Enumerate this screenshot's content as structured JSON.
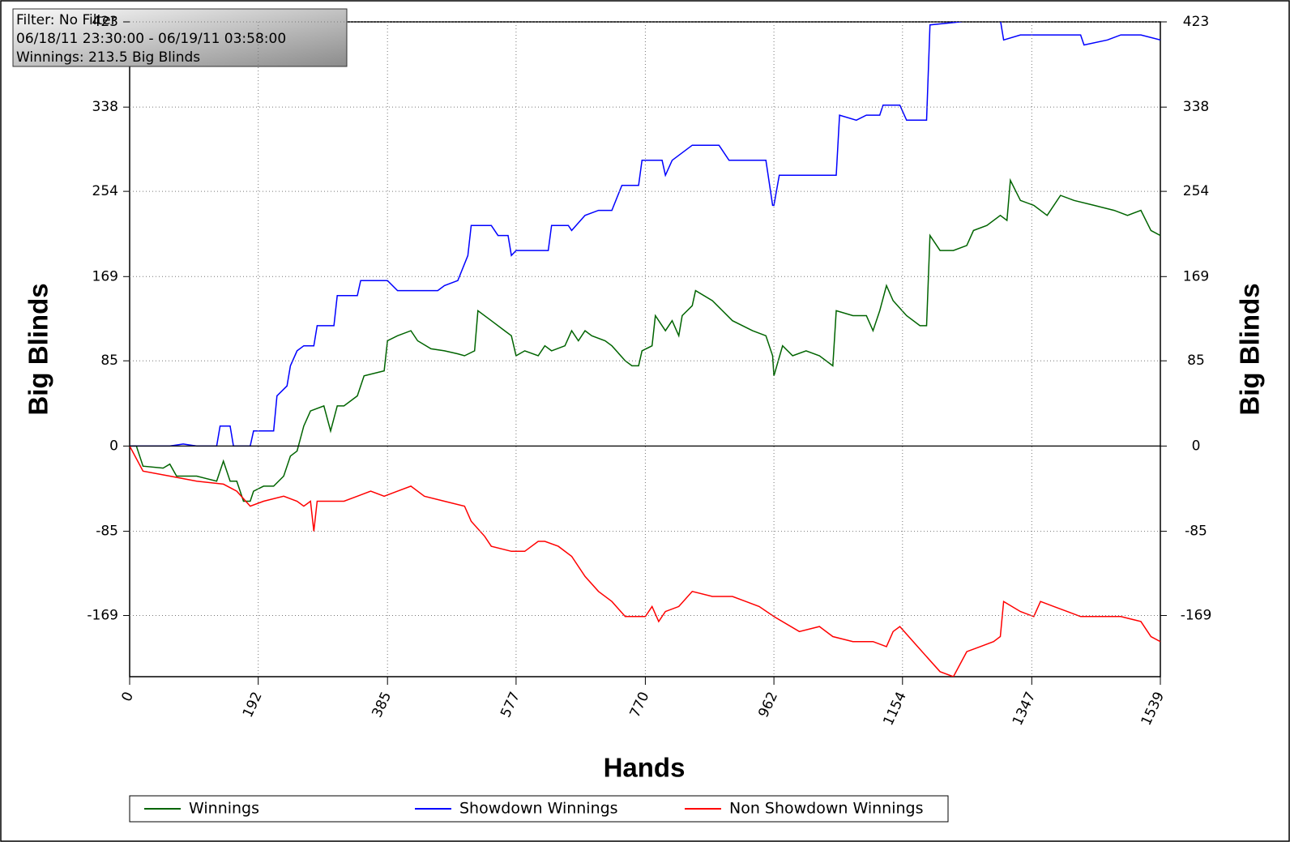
{
  "chart_data": {
    "type": "line",
    "info": [
      "Filter: No Filter",
      "06/18/11 23:30:00 - 06/19/11 03:58:00",
      "Winnings: 213.5 Big Blinds"
    ],
    "xlabel": "Hands",
    "ylabel": "Big Blinds",
    "y2label": "Big Blinds",
    "xlim": [
      0,
      1539
    ],
    "xticks": [
      0,
      192,
      385,
      577,
      770,
      962,
      1154,
      1347,
      1539
    ],
    "ylim": [
      -230,
      423
    ],
    "yticks": [
      -169,
      -85,
      0,
      85,
      169,
      254,
      338,
      423
    ],
    "y2lim": [
      -230,
      423
    ],
    "y2ticks": [
      -169,
      -85,
      0,
      85,
      169,
      254,
      338,
      423
    ],
    "grid": true,
    "legend": "bottom",
    "series": [
      {
        "name": "Winnings",
        "color": "#006400",
        "x": [
          0,
          10,
          20,
          50,
          60,
          70,
          100,
          130,
          140,
          150,
          160,
          170,
          180,
          185,
          200,
          215,
          230,
          240,
          250,
          260,
          270,
          290,
          300,
          310,
          320,
          340,
          350,
          380,
          385,
          400,
          420,
          430,
          450,
          470,
          490,
          500,
          515,
          520,
          540,
          560,
          570,
          577,
          590,
          610,
          620,
          630,
          650,
          660,
          670,
          680,
          690,
          710,
          720,
          740,
          750,
          760,
          765,
          780,
          785,
          800,
          810,
          820,
          825,
          840,
          845,
          870,
          900,
          930,
          950,
          960,
          962,
          975,
          990,
          1010,
          1030,
          1050,
          1055,
          1080,
          1100,
          1110,
          1120,
          1130,
          1140,
          1160,
          1180,
          1190,
          1195,
          1210,
          1230,
          1250,
          1260,
          1280,
          1300,
          1310,
          1315,
          1330,
          1350,
          1370,
          1390,
          1410,
          1440,
          1470,
          1490,
          1510,
          1525,
          1539
        ],
        "values": [
          0,
          0,
          -20,
          -22,
          -18,
          -30,
          -30,
          -35,
          -15,
          -35,
          -35,
          -55,
          -55,
          -45,
          -40,
          -40,
          -30,
          -10,
          -5,
          20,
          35,
          40,
          15,
          40,
          40,
          50,
          70,
          75,
          105,
          110,
          115,
          105,
          97,
          95,
          92,
          90,
          95,
          135,
          125,
          115,
          110,
          90,
          95,
          90,
          100,
          95,
          100,
          115,
          105,
          115,
          110,
          105,
          100,
          85,
          80,
          80,
          95,
          100,
          130,
          115,
          125,
          110,
          130,
          140,
          155,
          145,
          125,
          115,
          110,
          90,
          70,
          100,
          90,
          95,
          90,
          80,
          135,
          130,
          130,
          115,
          135,
          160,
          145,
          130,
          120,
          120,
          210,
          195,
          195,
          200,
          215,
          220,
          230,
          225,
          265,
          245,
          240,
          230,
          250,
          245,
          240,
          235,
          230,
          235,
          215,
          210
        ]
      },
      {
        "name": "Showdown Winnings",
        "color": "#0000ff",
        "x": [
          0,
          60,
          80,
          100,
          130,
          135,
          150,
          155,
          180,
          185,
          215,
          220,
          235,
          240,
          250,
          260,
          275,
          280,
          305,
          310,
          340,
          345,
          385,
          400,
          460,
          470,
          490,
          505,
          510,
          540,
          550,
          565,
          570,
          577,
          625,
          630,
          655,
          660,
          680,
          700,
          720,
          735,
          760,
          765,
          795,
          800,
          810,
          840,
          880,
          895,
          950,
          960,
          962,
          970,
          1010,
          1055,
          1060,
          1085,
          1100,
          1120,
          1125,
          1150,
          1160,
          1190,
          1195,
          1240,
          1250,
          1300,
          1305,
          1330,
          1390,
          1420,
          1425,
          1460,
          1480,
          1510,
          1539
        ],
        "values": [
          0,
          0,
          2,
          0,
          0,
          20,
          20,
          0,
          0,
          15,
          15,
          50,
          60,
          80,
          95,
          100,
          100,
          120,
          120,
          150,
          150,
          165,
          165,
          155,
          155,
          160,
          165,
          190,
          220,
          220,
          210,
          210,
          190,
          195,
          195,
          220,
          220,
          215,
          230,
          235,
          235,
          260,
          260,
          285,
          285,
          270,
          285,
          300,
          300,
          285,
          285,
          240,
          240,
          270,
          270,
          270,
          330,
          325,
          330,
          330,
          340,
          340,
          325,
          325,
          420,
          423,
          425,
          425,
          405,
          410,
          410,
          410,
          400,
          405,
          410,
          410,
          405
        ]
      },
      {
        "name": "Non Showdown Winnings",
        "color": "#ff0000",
        "x": [
          0,
          20,
          60,
          100,
          140,
          160,
          180,
          200,
          230,
          250,
          260,
          270,
          275,
          280,
          300,
          320,
          340,
          360,
          380,
          400,
          420,
          440,
          470,
          500,
          510,
          530,
          540,
          570,
          590,
          610,
          620,
          640,
          660,
          680,
          700,
          720,
          740,
          770,
          780,
          790,
          800,
          820,
          840,
          870,
          900,
          920,
          940,
          962,
          1000,
          1030,
          1050,
          1080,
          1110,
          1130,
          1140,
          1150,
          1170,
          1190,
          1210,
          1230,
          1250,
          1270,
          1290,
          1300,
          1305,
          1330,
          1350,
          1360,
          1380,
          1400,
          1420,
          1450,
          1480,
          1510,
          1525,
          1539
        ],
        "values": [
          0,
          -25,
          -30,
          -35,
          -38,
          -45,
          -60,
          -55,
          -50,
          -55,
          -60,
          -55,
          -85,
          -55,
          -55,
          -55,
          -50,
          -45,
          -50,
          -45,
          -40,
          -50,
          -55,
          -60,
          -75,
          -90,
          -100,
          -105,
          -105,
          -95,
          -95,
          -100,
          -110,
          -130,
          -145,
          -155,
          -170,
          -170,
          -160,
          -175,
          -165,
          -160,
          -145,
          -150,
          -150,
          -155,
          -160,
          -170,
          -185,
          -180,
          -190,
          -195,
          -195,
          -200,
          -185,
          -180,
          -195,
          -210,
          -225,
          -230,
          -205,
          -200,
          -195,
          -190,
          -155,
          -165,
          -170,
          -155,
          -160,
          -165,
          -170,
          -170,
          -170,
          -175,
          -190,
          -195
        ]
      }
    ]
  }
}
